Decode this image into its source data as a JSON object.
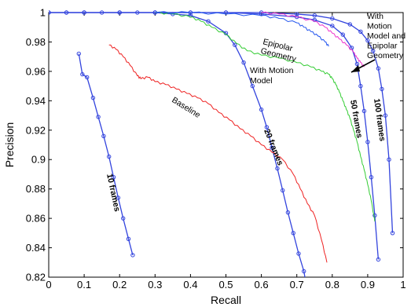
{
  "chart_data": {
    "type": "line",
    "title": "",
    "xlabel": "Recall",
    "ylabel": "Precision",
    "xlim": [
      0,
      1
    ],
    "ylim": [
      0.82,
      1
    ],
    "xticks": [
      0,
      0.1,
      0.2,
      0.3,
      0.4,
      0.5,
      0.6,
      0.7,
      0.8,
      0.9,
      1
    ],
    "xtick_labels": [
      "0",
      "0.1",
      "0.2",
      "0.3",
      "0.4",
      "0.5",
      "0.6",
      "0.7",
      "0.8",
      "0.9",
      "1"
    ],
    "yticks": [
      0.82,
      0.84,
      0.86,
      0.88,
      0.9,
      0.92,
      0.94,
      0.96,
      0.98,
      1
    ],
    "ytick_labels": [
      "0.82",
      "0.84",
      "0.86",
      "0.88",
      "0.9",
      "0.92",
      "0.94",
      "0.96",
      "0.98",
      "1"
    ],
    "grid": false,
    "legend": "none",
    "series": [
      {
        "name": "10 frames",
        "color": "#3344dd",
        "marker": "circle",
        "x": [
          0.085,
          0.095,
          0.108,
          0.125,
          0.14,
          0.155,
          0.17,
          0.183,
          0.196,
          0.21,
          0.225,
          0.237
        ],
        "y": [
          0.972,
          0.958,
          0.956,
          0.942,
          0.929,
          0.916,
          0.902,
          0.888,
          0.874,
          0.86,
          0.846,
          0.835
        ]
      },
      {
        "name": "20 frames",
        "color": "#3344dd",
        "marker": "circle",
        "x": [
          0.0,
          0.05,
          0.1,
          0.15,
          0.2,
          0.25,
          0.3,
          0.35,
          0.4,
          0.45,
          0.5,
          0.525,
          0.55,
          0.575,
          0.6,
          0.615,
          0.63,
          0.645,
          0.66,
          0.675,
          0.69,
          0.705,
          0.72,
          0.73
        ],
        "y": [
          1.0,
          1.0,
          1.0,
          1.0,
          1.0,
          1.0,
          1.0,
          0.999,
          0.998,
          0.994,
          0.986,
          0.978,
          0.966,
          0.95,
          0.934,
          0.922,
          0.908,
          0.894,
          0.879,
          0.864,
          0.85,
          0.836,
          0.824,
          0.81
        ]
      },
      {
        "name": "50 frames",
        "color": "#3344dd",
        "marker": "circle",
        "x": [
          0.0,
          0.05,
          0.1,
          0.2,
          0.3,
          0.4,
          0.5,
          0.6,
          0.7,
          0.75,
          0.8,
          0.83,
          0.855,
          0.87,
          0.88,
          0.89,
          0.9,
          0.91,
          0.92,
          0.93
        ],
        "y": [
          1.0,
          1.0,
          1.0,
          1.0,
          1.0,
          1.0,
          1.0,
          0.999,
          0.997,
          0.995,
          0.991,
          0.985,
          0.976,
          0.965,
          0.95,
          0.933,
          0.912,
          0.888,
          0.862,
          0.832
        ]
      },
      {
        "name": "100 frames",
        "color": "#3344dd",
        "marker": "circle",
        "x": [
          0.0,
          0.1,
          0.2,
          0.3,
          0.4,
          0.5,
          0.6,
          0.7,
          0.75,
          0.8,
          0.85,
          0.88,
          0.9,
          0.915,
          0.93,
          0.94,
          0.95,
          0.96,
          0.97
        ],
        "y": [
          1.0,
          1.0,
          1.0,
          1.0,
          1.0,
          1.0,
          1.0,
          0.999,
          0.998,
          0.996,
          0.992,
          0.987,
          0.981,
          0.974,
          0.962,
          0.948,
          0.93,
          0.9,
          0.85
        ]
      },
      {
        "name": "Baseline",
        "color": "#ee2222",
        "marker": "none",
        "x": [
          0.17,
          0.19,
          0.21,
          0.23,
          0.25,
          0.26,
          0.28,
          0.3,
          0.33,
          0.36,
          0.39,
          0.42,
          0.45,
          0.48,
          0.51,
          0.54,
          0.57,
          0.6,
          0.63,
          0.66,
          0.69,
          0.71,
          0.73,
          0.75,
          0.77,
          0.785
        ],
        "y": [
          0.978,
          0.975,
          0.97,
          0.964,
          0.957,
          0.955,
          0.956,
          0.953,
          0.951,
          0.948,
          0.945,
          0.942,
          0.938,
          0.932,
          0.927,
          0.921,
          0.916,
          0.91,
          0.905,
          0.9,
          0.89,
          0.88,
          0.87,
          0.862,
          0.845,
          0.83
        ]
      },
      {
        "name": "With Motion Model",
        "color": "#33cc33",
        "marker": "none",
        "x": [
          0.3,
          0.35,
          0.4,
          0.43,
          0.46,
          0.5,
          0.53,
          0.56,
          0.6,
          0.65,
          0.7,
          0.74,
          0.77,
          0.79,
          0.8,
          0.81,
          0.82,
          0.83,
          0.84,
          0.85,
          0.86,
          0.87,
          0.88,
          0.89,
          0.9,
          0.91,
          0.92
        ],
        "y": [
          1.0,
          0.999,
          0.997,
          0.994,
          0.99,
          0.985,
          0.979,
          0.974,
          0.971,
          0.969,
          0.966,
          0.963,
          0.96,
          0.958,
          0.955,
          0.951,
          0.946,
          0.94,
          0.934,
          0.928,
          0.92,
          0.912,
          0.902,
          0.893,
          0.883,
          0.872,
          0.858
        ]
      },
      {
        "name": "Epipolar Geometry",
        "color": "#2255ee",
        "marker": "none",
        "x": [
          0.3,
          0.4,
          0.5,
          0.6,
          0.65,
          0.7,
          0.72,
          0.74,
          0.76,
          0.78,
          0.79
        ],
        "y": [
          1.0,
          1.0,
          0.999,
          0.998,
          0.996,
          0.993,
          0.99,
          0.987,
          0.984,
          0.98,
          0.977
        ]
      },
      {
        "name": "With Motion Model and Epipolar Geometry",
        "color": "#ee33cc",
        "marker": "none",
        "x": [
          0.6,
          0.65,
          0.7,
          0.75,
          0.78,
          0.8,
          0.82,
          0.84,
          0.86,
          0.87,
          0.88,
          0.89
        ],
        "y": [
          1.0,
          0.999,
          0.997,
          0.994,
          0.99,
          0.986,
          0.982,
          0.978,
          0.973,
          0.969,
          0.966,
          0.963
        ]
      }
    ],
    "annotations": [
      {
        "text": "10 frames",
        "series": "10 frames"
      },
      {
        "text": "20 frames",
        "series": "20 frames"
      },
      {
        "text": "50 frames",
        "series": "50 frames"
      },
      {
        "text": "100 frames",
        "series": "100 frames"
      },
      {
        "text": "Baseline",
        "series": "Baseline"
      },
      {
        "lines": [
          "With Motion",
          "Model"
        ],
        "series": "With Motion Model"
      },
      {
        "lines": [
          "Epipolar",
          "Geometry"
        ],
        "series": "Epipolar Geometry"
      },
      {
        "lines": [
          "With",
          "Motion",
          "Model and",
          "Epipolar",
          "Geometry"
        ],
        "series": "With Motion Model and Epipolar Geometry",
        "arrow": true
      }
    ]
  }
}
